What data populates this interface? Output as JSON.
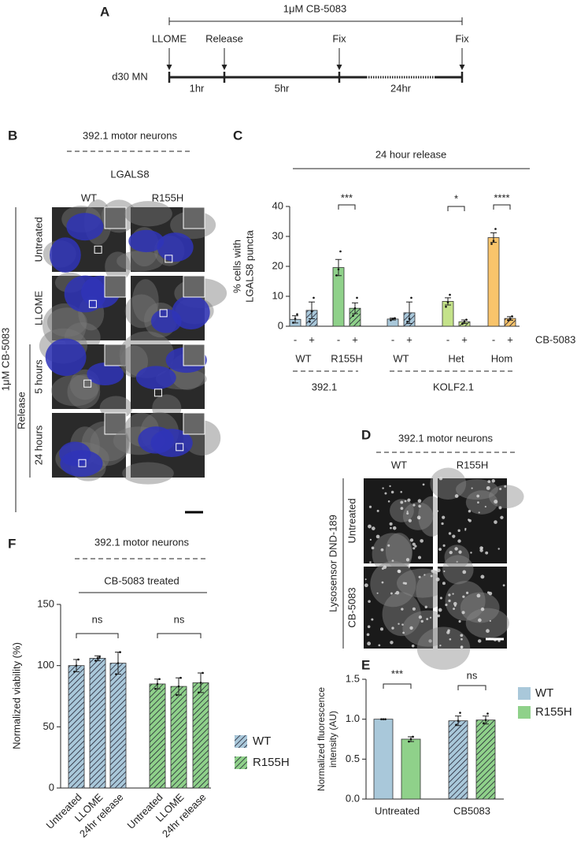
{
  "panel_a": {
    "label": "A",
    "treatment": "1μM CB-5083",
    "events": [
      "LLOME",
      "Release",
      "Fix",
      "Fix"
    ],
    "sample": "d30 MN",
    "durations": [
      "1hr",
      "5hr",
      "24hr"
    ]
  },
  "panel_b": {
    "label": "B",
    "title": "392.1 motor neurons",
    "stain": "LGALS8",
    "columns": [
      "WT",
      "R155H"
    ],
    "rows": [
      "Untreated",
      "LLOME",
      "5 hours",
      "24 hours"
    ],
    "treatment": "1μM CB-5083",
    "release": "Release"
  },
  "panel_d": {
    "label": "D",
    "title": "392.1 motor neurons",
    "columns": [
      "WT",
      "R155H"
    ],
    "rows": [
      "Untreated",
      "CB-5083"
    ],
    "stain": "Lysosensor DND-189"
  },
  "chart_data": [
    {
      "type": "bar",
      "label": "C",
      "title": "24 hour release",
      "y_label": [
        "% cells with",
        "LGALS8 puncta"
      ],
      "ylim": [
        0,
        40
      ],
      "yticks": [
        0,
        10,
        20,
        30,
        40
      ],
      "categories": [
        "-",
        "+",
        "-",
        "+",
        "-",
        "+",
        "-",
        "+",
        "-",
        "+"
      ],
      "values": [
        2.3,
        5.3,
        19.6,
        6.0,
        2.4,
        4.5,
        8.3,
        1.5,
        29.6,
        2.6
      ],
      "errors": [
        1.2,
        2.8,
        2.7,
        1.8,
        0.3,
        3.6,
        1.2,
        0.6,
        1.6,
        0.6
      ],
      "points": [
        [
          1.2,
          2.5,
          4.0
        ],
        [
          1.5,
          5.0,
          9.5
        ],
        [
          17,
          19,
          25
        ],
        [
          3.5,
          6,
          9.5
        ],
        [
          2.0,
          2.5,
          2.7
        ],
        [
          1.5,
          2.5,
          9.5
        ],
        [
          6.5,
          8,
          10.5
        ],
        [
          0.8,
          1.5,
          2.2
        ],
        [
          27.5,
          28.5,
          32.5
        ],
        [
          2,
          2.5,
          3.3
        ]
      ],
      "colors": [
        "#a9c8da",
        "#a9c8da",
        "#8fd18a",
        "#8fd18a",
        "#a9c8da",
        "#a9c8da",
        "#c4e28a",
        "#c4e28a",
        "#f9c46b",
        "#f9c46b"
      ],
      "hatched": [
        false,
        true,
        false,
        true,
        false,
        true,
        false,
        true,
        false,
        true
      ],
      "treatment": "CB-5083",
      "genotypes": [
        "WT",
        "R155H",
        "WT",
        "Het",
        "Hom"
      ],
      "cell_lines": [
        "392.1",
        "KOLF2.1"
      ],
      "significance": [
        "***",
        "*",
        "****"
      ]
    },
    {
      "type": "grouped_bar",
      "label": "E",
      "y_label": [
        "Normalized fluorescence",
        "intensity (AU)"
      ],
      "ylim": [
        0,
        1.5
      ],
      "yticks": [
        {
          "value": 0,
          "label": "0.0"
        },
        0.5,
        {
          "value": 1,
          "label": "1.0"
        },
        1.5
      ],
      "categories": [
        "Untreated",
        "CB5083"
      ],
      "hatched": [
        false,
        true
      ],
      "series": [
        {
          "name": "WT",
          "color": "#a9c8da",
          "values": [
            1.0,
            0.98
          ],
          "errors": [
            0,
            0.06
          ],
          "points": [
            [
              1,
              1,
              1
            ],
            [
              0.93,
              0.98,
              1.08
            ]
          ]
        },
        {
          "name": "R155H",
          "color": "#8fd18a",
          "values": [
            0.75,
            0.99
          ],
          "errors": [
            0.03,
            0.05
          ],
          "points": [
            [
              0.72,
              0.75,
              0.78
            ],
            [
              0.95,
              0.99,
              1.07
            ]
          ]
        }
      ],
      "significance": [
        "***",
        "ns"
      ]
    },
    {
      "type": "grouped_bar",
      "label": "F",
      "title": "392.1 motor neurons",
      "subtitle": "CB-5083 treated",
      "y_label": "Normalized viability (%)",
      "ylim": [
        0,
        150
      ],
      "yticks": [
        0,
        50,
        100,
        150
      ],
      "categories": [
        "Untreated",
        "LLOME",
        "24hr release"
      ],
      "hatched": true,
      "series": [
        {
          "name": "WT",
          "color": "#a9c8da",
          "values": [
            100,
            106,
            102
          ],
          "errors": [
            5,
            2,
            9
          ],
          "points": [
            [
              95,
              100,
              105
            ],
            [
              104,
              106,
              107
            ],
            [
              93,
              102,
              111
            ]
          ]
        },
        {
          "name": "R155H",
          "color": "#8fd18a",
          "values": [
            85,
            83,
            86
          ],
          "errors": [
            4,
            7,
            8
          ],
          "points": [
            [
              81,
              85,
              89
            ],
            [
              76,
              83,
              90
            ],
            [
              78,
              86,
              94
            ]
          ]
        }
      ],
      "significance": [
        "ns",
        "ns"
      ]
    }
  ]
}
